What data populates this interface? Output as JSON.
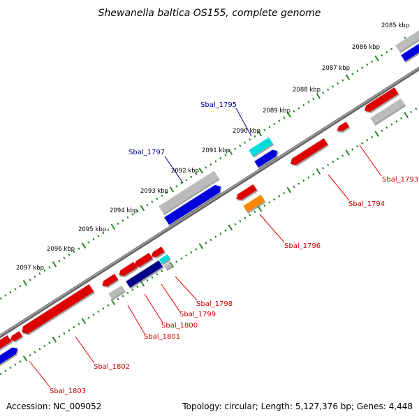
{
  "title": "Shewanella baltica OS155, complete genome",
  "footer": {
    "accession": "Accession: NC_009052",
    "topology": "Topology: circular; Length: 5,127,376 bp; Genes: 4,448"
  },
  "colors": {
    "backbone": "#888888",
    "ticks": "#228822",
    "forward_cds": "#0000dd",
    "reverse_cds": "#dd0000",
    "gray_feature": "#bbbbbb",
    "cyan_feature": "#00dddd",
    "orange_feature": "#ff8800",
    "navy_feature": "#000088",
    "label_red": "#cc0000",
    "label_blue": "#000099"
  },
  "kbp_labels": [
    "2085 kbp",
    "2086 kbp",
    "2087 kbp",
    "2088 kbp",
    "2089 kbp",
    "2090 kbp",
    "2091 kbp",
    "2092 kbp",
    "2093 kbp",
    "2094 kbp",
    "2095 kbp",
    "2096 kbp",
    "2097 kbp"
  ],
  "gene_labels": {
    "sbal1793": "Sbal_1793",
    "sbal1794": "Sbal_1794",
    "sbal1795": "Sbal_1795",
    "sbal1796": "Sbal_1796",
    "sbal1797": "Sbal_1797",
    "sbal1798": "Sbal_1798",
    "sbal1799": "Sbal_1799",
    "sbal1800": "Sbal_1800",
    "sbal1801": "Sbal_1801",
    "sbal1802": "Sbal_1802",
    "sbal1803": "Sbal_1803"
  }
}
